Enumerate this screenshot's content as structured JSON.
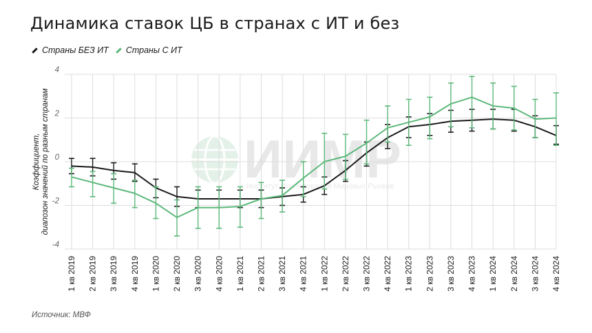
{
  "title": "Динамика ставок ЦБ в странах с ИТ и без",
  "source": "Источник: МВФ",
  "watermark": {
    "brand": "ИИМР",
    "subtitle": "Институт Исследований Мировых Рынков"
  },
  "colors": {
    "series_no_it": "#1a1a1a",
    "series_it": "#5cb87a",
    "grid": "#dcdcdc",
    "axis_text": "#666666"
  },
  "chart_data": {
    "type": "line",
    "ylabel": "Коэффициент,\nдиапозон значений по разным странам",
    "ylim": [
      -4,
      4
    ],
    "yticks": [
      -4,
      -2,
      0,
      2,
      4
    ],
    "grid": "vertical and horizontal",
    "legend_position": "top-left",
    "categories": [
      "1 кв 2019",
      "2 кв 2019",
      "3 кв 2019",
      "4 кв 2019",
      "1 кв 2020",
      "2 кв 2020",
      "3 кв 2020",
      "4 кв 2020",
      "1 кв 2021",
      "2 кв 2021",
      "3 кв 2021",
      "4 кв 2021",
      "1 кв 2022",
      "2 кв 2022",
      "3 кв 2022",
      "4 кв 2022",
      "1 кв 2023",
      "2 кв 2023",
      "3 кв 2023",
      "4 кв 2023",
      "1 кв 2024",
      "2 кв 2024",
      "3 кв 2024",
      "4 кв 2024"
    ],
    "series": [
      {
        "name": "Страны БЕЗ ИТ",
        "color": "#1a1a1a",
        "values": [
          -0.2,
          -0.25,
          -0.4,
          -0.5,
          -1.2,
          -1.6,
          -1.7,
          -1.7,
          -1.7,
          -1.7,
          -1.6,
          -1.5,
          -1.1,
          -0.4,
          0.4,
          1.1,
          1.6,
          1.7,
          1.85,
          1.9,
          1.95,
          1.9,
          1.6,
          1.2
        ],
        "err_low": [
          -0.55,
          -0.65,
          -0.8,
          -0.9,
          -1.65,
          -2.05,
          -2.1,
          -2.1,
          -2.1,
          -2.1,
          -2.0,
          -1.85,
          -1.5,
          -0.9,
          -0.2,
          0.6,
          1.1,
          1.2,
          1.35,
          1.4,
          1.5,
          1.4,
          1.1,
          0.8
        ],
        "err_high": [
          0.15,
          0.15,
          -0.05,
          -0.1,
          -0.8,
          -1.15,
          -1.3,
          -1.3,
          -1.3,
          -1.3,
          -1.2,
          -1.15,
          -0.7,
          0.05,
          0.9,
          1.7,
          2.05,
          2.2,
          2.35,
          2.4,
          2.4,
          2.4,
          2.1,
          1.65
        ]
      },
      {
        "name": "Страны С ИТ",
        "color": "#5cb87a",
        "values": [
          -0.7,
          -0.95,
          -1.2,
          -1.45,
          -1.9,
          -2.55,
          -2.1,
          -2.1,
          -2.05,
          -1.7,
          -1.55,
          -0.75,
          0.0,
          0.25,
          0.85,
          1.55,
          1.8,
          2.05,
          2.65,
          2.95,
          2.55,
          2.45,
          1.95,
          2.0
        ],
        "err_low": [
          -1.15,
          -1.6,
          -1.9,
          -2.1,
          -2.6,
          -3.4,
          -3.05,
          -3.05,
          -3.0,
          -2.6,
          -2.3,
          -1.6,
          -1.25,
          -0.8,
          -0.1,
          0.9,
          0.75,
          1.05,
          1.6,
          1.55,
          1.5,
          1.45,
          1.1,
          0.75
        ],
        "err_high": [
          -0.3,
          -0.45,
          -0.55,
          -0.85,
          -1.15,
          -1.75,
          -1.15,
          -1.15,
          -1.15,
          -0.95,
          -0.85,
          0.0,
          1.3,
          1.25,
          1.9,
          2.55,
          2.85,
          2.95,
          3.6,
          3.9,
          3.6,
          3.45,
          2.85,
          3.15
        ]
      }
    ]
  }
}
